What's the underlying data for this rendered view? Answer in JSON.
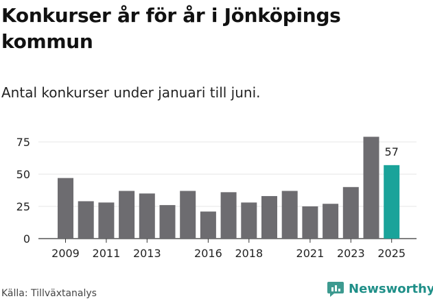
{
  "title": "Konkurser år för år i Jönköpings kommun",
  "subtitle": "Antal konkurser under januari till juni.",
  "source": "Källa: Tillväxtanalys",
  "brand": "Newsworthy",
  "colors": {
    "bar": "#6d6c70",
    "highlight": "#1aa39a",
    "grid": "#e4e4e4",
    "axis": "#333333"
  },
  "chart_data": {
    "type": "bar",
    "x": [
      2009,
      2010,
      2011,
      2012,
      2013,
      2014,
      2015,
      2016,
      2017,
      2018,
      2019,
      2020,
      2021,
      2022,
      2023,
      2024,
      2025
    ],
    "values": [
      47,
      29,
      28,
      37,
      35,
      26,
      37,
      21,
      36,
      28,
      33,
      37,
      25,
      27,
      40,
      79,
      57
    ],
    "x_tick_labels": [
      "2009",
      "2011",
      "2013",
      "2016",
      "2018",
      "2021",
      "2023",
      "2025"
    ],
    "y_ticks": [
      0,
      25,
      50,
      75
    ],
    "ylim": [
      0,
      80
    ],
    "highlight_index": 16,
    "highlight_label": "57",
    "grid": true
  }
}
